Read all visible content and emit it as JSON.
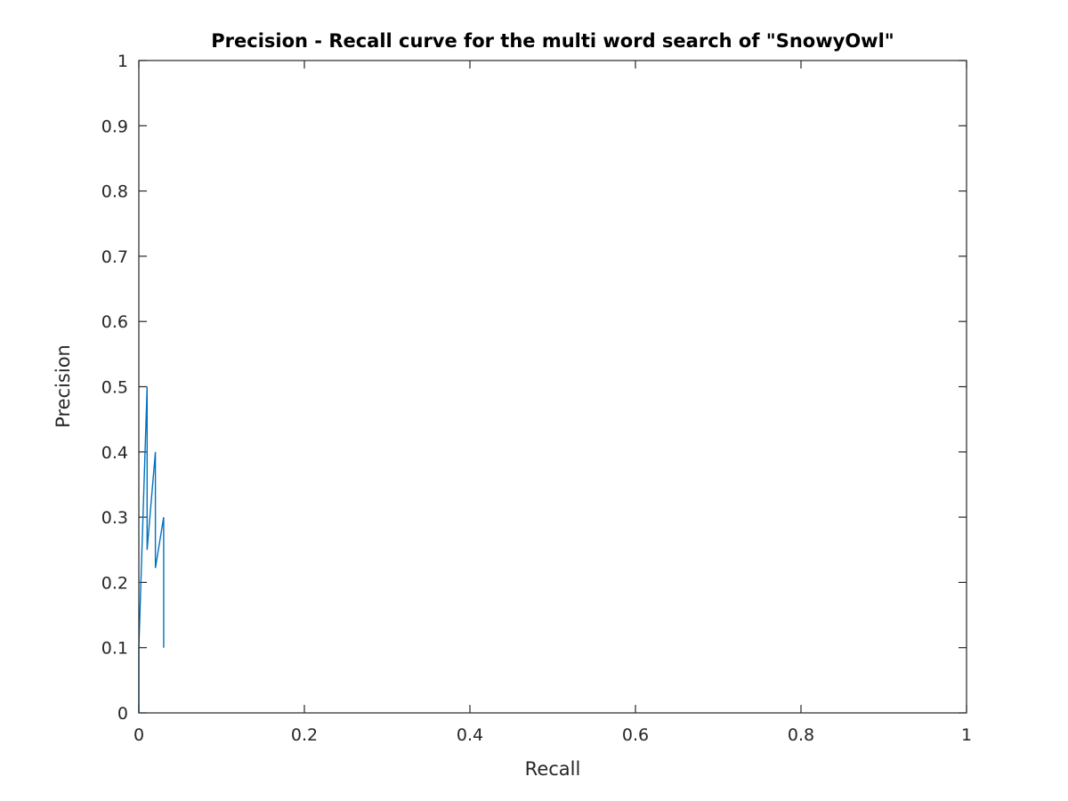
{
  "chart_data": {
    "type": "line",
    "title": "Precision - Recall curve for the multi word search of \"SnowyOwl\"",
    "xlabel": "Recall",
    "ylabel": "Precision",
    "xlim": [
      0,
      1
    ],
    "ylim": [
      0,
      1
    ],
    "grid": false,
    "x_ticks": [
      0,
      0.2,
      0.4,
      0.6,
      0.8,
      1
    ],
    "x_tick_labels": [
      "0",
      "0.2",
      "0.4",
      "0.6",
      "0.8",
      "1"
    ],
    "y_ticks": [
      0,
      0.1,
      0.2,
      0.3,
      0.4,
      0.5,
      0.6,
      0.7,
      0.8,
      0.9,
      1
    ],
    "y_tick_labels": [
      "0",
      "0.1",
      "0.2",
      "0.3",
      "0.4",
      "0.5",
      "0.6",
      "0.7",
      "0.8",
      "0.9",
      "1"
    ],
    "series": [
      {
        "color": "#0072BD",
        "x": [
          0,
          0,
          0.01,
          0.01,
          0.01,
          0.02,
          0.02,
          0.03,
          0.03
        ],
        "y": [
          0,
          0.1,
          0.5,
          0.333,
          0.25,
          0.4,
          0.222,
          0.3,
          0.1
        ]
      }
    ]
  }
}
